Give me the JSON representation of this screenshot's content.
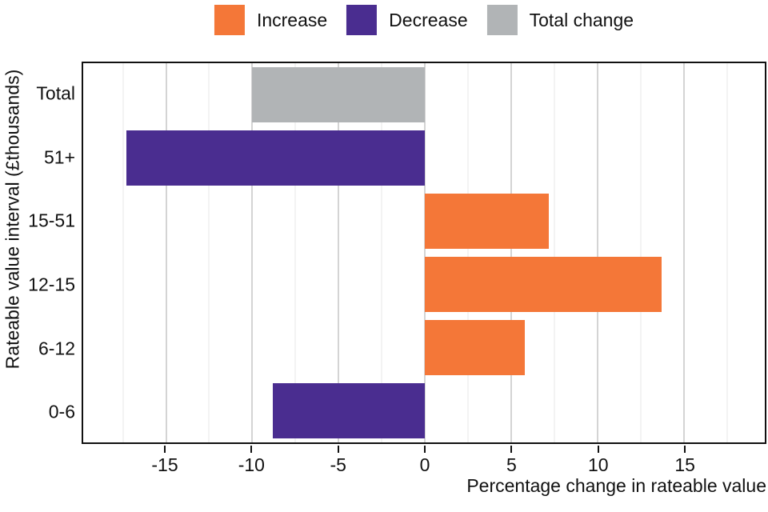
{
  "chart_data": {
    "type": "bar",
    "orientation": "horizontal",
    "xlabel": "Percentage change in rateable value",
    "ylabel": "Rateable value interval (£thousands)",
    "categories": [
      "Total",
      "51+",
      "15-51",
      "12-15",
      "6-12",
      "0-6"
    ],
    "values": [
      -10.0,
      -17.3,
      7.2,
      13.7,
      5.8,
      -8.8
    ],
    "bar_series": [
      "Total change",
      "Decrease",
      "Increase",
      "Increase",
      "Increase",
      "Decrease"
    ],
    "xlim": [
      -19.8,
      19.7
    ],
    "x_ticks": [
      -15,
      -10,
      -5,
      0,
      5,
      10,
      15
    ],
    "x_tick_labels": [
      "-15",
      "-10",
      "-5",
      "0",
      "5",
      "10",
      "15"
    ],
    "minor_grid_step": 2.5,
    "major_grid_step": 5,
    "grid": "vertical major and minor gridlines",
    "legend_position": "top",
    "legend": {
      "items": [
        {
          "label": "Increase",
          "color": "#F47738"
        },
        {
          "label": "Decrease",
          "color": "#4A2D90"
        },
        {
          "label": "Total change",
          "color": "#B1B4B6"
        }
      ]
    },
    "colors": {
      "Increase": "#F47738",
      "Decrease": "#4A2D90",
      "Total change": "#B1B4B6"
    }
  }
}
